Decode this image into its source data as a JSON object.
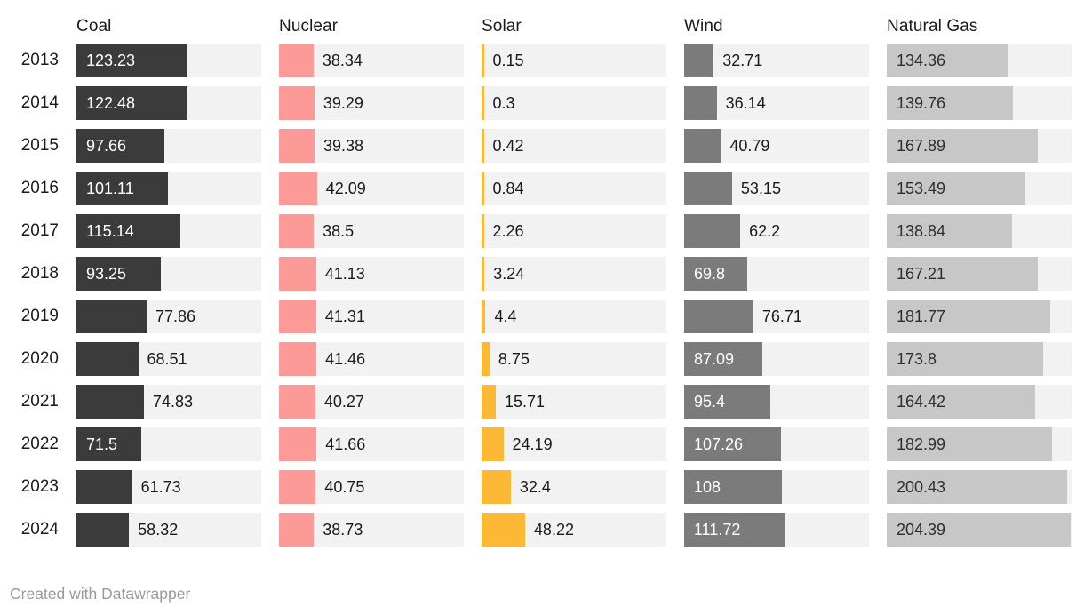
{
  "chart_data": {
    "type": "bar",
    "orientation": "horizontal",
    "title": "",
    "categories": [
      "2013",
      "2014",
      "2015",
      "2016",
      "2017",
      "2018",
      "2019",
      "2020",
      "2021",
      "2022",
      "2023",
      "2024"
    ],
    "xmax": 205,
    "grid": false,
    "track_color": "#f2f2f2",
    "series": [
      {
        "name": "Coal",
        "color": "#3b3b3b",
        "inside_text_color": "#ffffff",
        "values": [
          "123.23",
          "122.48",
          "97.66",
          "101.11",
          "115.14",
          "93.25",
          "77.86",
          "68.51",
          "74.83",
          "71.5",
          "61.73",
          "58.32"
        ],
        "label_inside": [
          true,
          true,
          true,
          true,
          true,
          true,
          false,
          false,
          false,
          true,
          false,
          false
        ]
      },
      {
        "name": "Nuclear",
        "color": "#fc9a98",
        "inside_text_color": "#1a1a1a",
        "values": [
          "38.34",
          "39.29",
          "39.38",
          "42.09",
          "38.5",
          "41.13",
          "41.31",
          "41.46",
          "40.27",
          "41.66",
          "40.75",
          "38.73"
        ],
        "label_inside": [
          false,
          false,
          false,
          false,
          false,
          false,
          false,
          false,
          false,
          false,
          false,
          false
        ]
      },
      {
        "name": "Solar",
        "color": "#fdb936",
        "inside_text_color": "#1a1a1a",
        "values": [
          "0.15",
          "0.3",
          "0.42",
          "0.84",
          "2.26",
          "3.24",
          "4.4",
          "8.75",
          "15.71",
          "24.19",
          "32.4",
          "48.22"
        ],
        "label_inside": [
          false,
          false,
          false,
          false,
          false,
          false,
          false,
          false,
          false,
          false,
          false,
          false
        ]
      },
      {
        "name": "Wind",
        "color": "#7b7b7b",
        "inside_text_color": "#ffffff",
        "values": [
          "32.71",
          "36.14",
          "40.79",
          "53.15",
          "62.2",
          "69.8",
          "76.71",
          "87.09",
          "95.4",
          "107.26",
          "108",
          "111.72"
        ],
        "label_inside": [
          false,
          false,
          false,
          false,
          false,
          true,
          false,
          true,
          true,
          true,
          true,
          true
        ]
      },
      {
        "name": "Natural Gas",
        "color": "#c7c7c7",
        "inside_text_color": "#2e2e2e",
        "values": [
          "134.36",
          "139.76",
          "167.89",
          "153.49",
          "138.84",
          "167.21",
          "181.77",
          "173.8",
          "164.42",
          "182.99",
          "200.43",
          "204.39"
        ],
        "label_inside": [
          true,
          true,
          true,
          true,
          true,
          true,
          true,
          true,
          true,
          true,
          true,
          true
        ]
      }
    ]
  },
  "footer": {
    "credit": "Created with Datawrapper"
  }
}
